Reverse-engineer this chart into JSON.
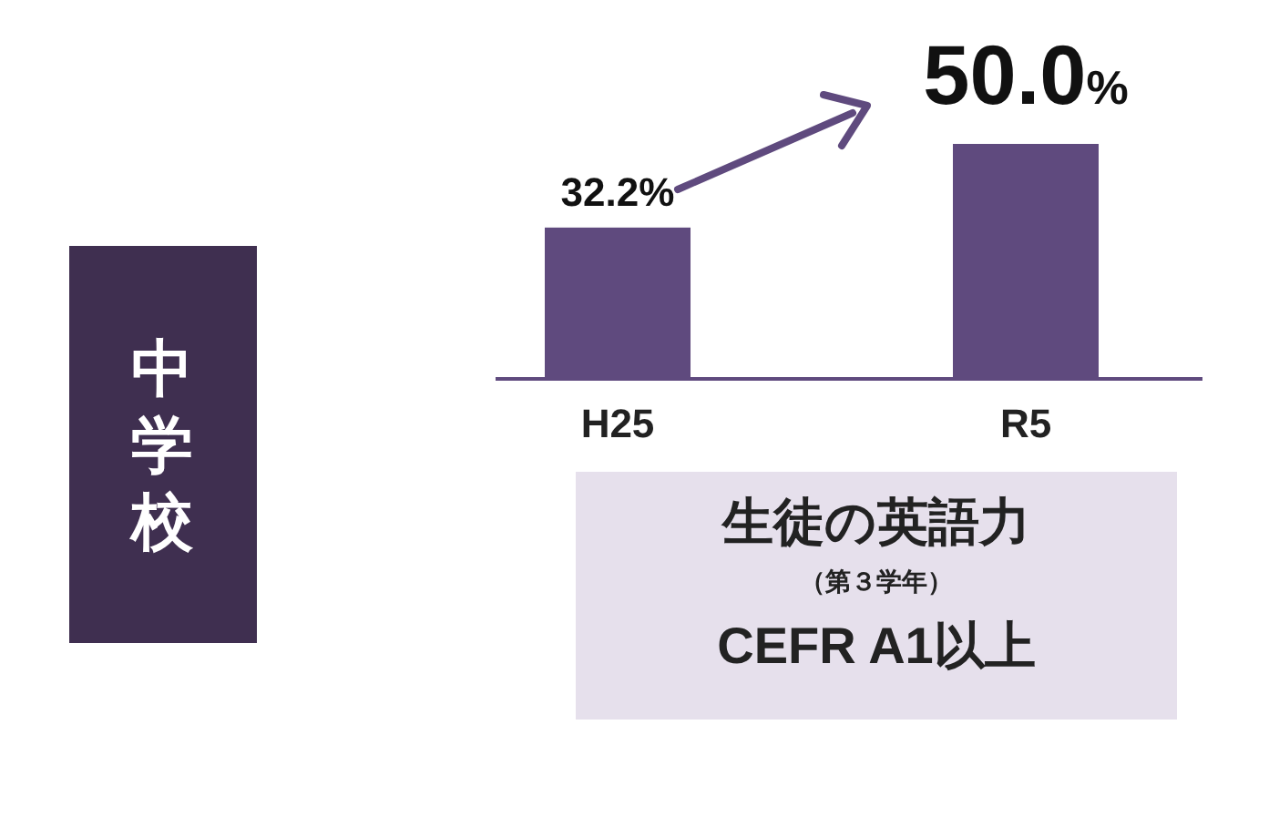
{
  "chart_data": {
    "type": "bar",
    "title": "中学校",
    "categories": [
      "H25",
      "R5"
    ],
    "values": [
      32.2,
      50.0
    ],
    "value_labels": [
      "32.2%",
      "50.0%"
    ],
    "colors": [
      "#5f4a7e",
      "#5f4a7e"
    ],
    "annotations": [
      "生徒の英語力",
      "（第３学年）",
      "CEFR A1以上"
    ]
  }
}
